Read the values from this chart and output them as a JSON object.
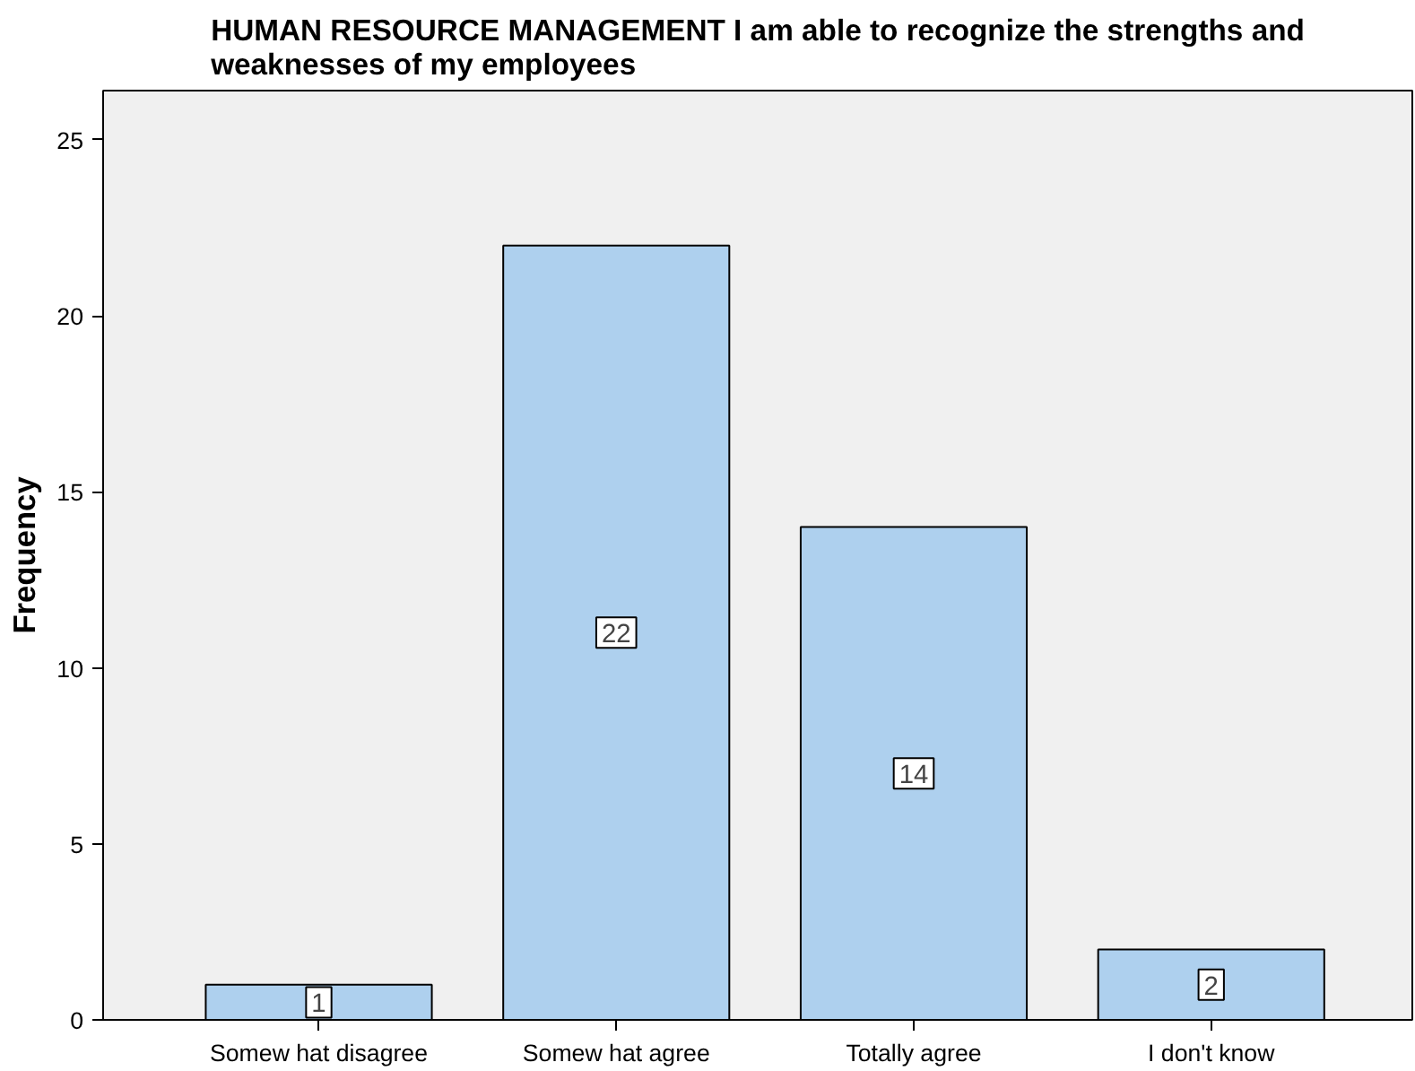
{
  "chart_data": {
    "type": "bar",
    "title": "HUMAN RESOURCE MANAGEMENT I am able to recognize the strengths and\nweaknesses of my employees",
    "ylabel": "Frequency",
    "categories": [
      "Somew hat disagree",
      "Somew hat agree",
      "Totally agree",
      "I don't know"
    ],
    "values": [
      1,
      22,
      14,
      2
    ],
    "color": "#aed0ee",
    "ylim": [
      0,
      26.4
    ],
    "yticks": [
      0,
      5,
      10,
      15,
      20,
      25
    ],
    "grid": false,
    "data_labels": true
  }
}
